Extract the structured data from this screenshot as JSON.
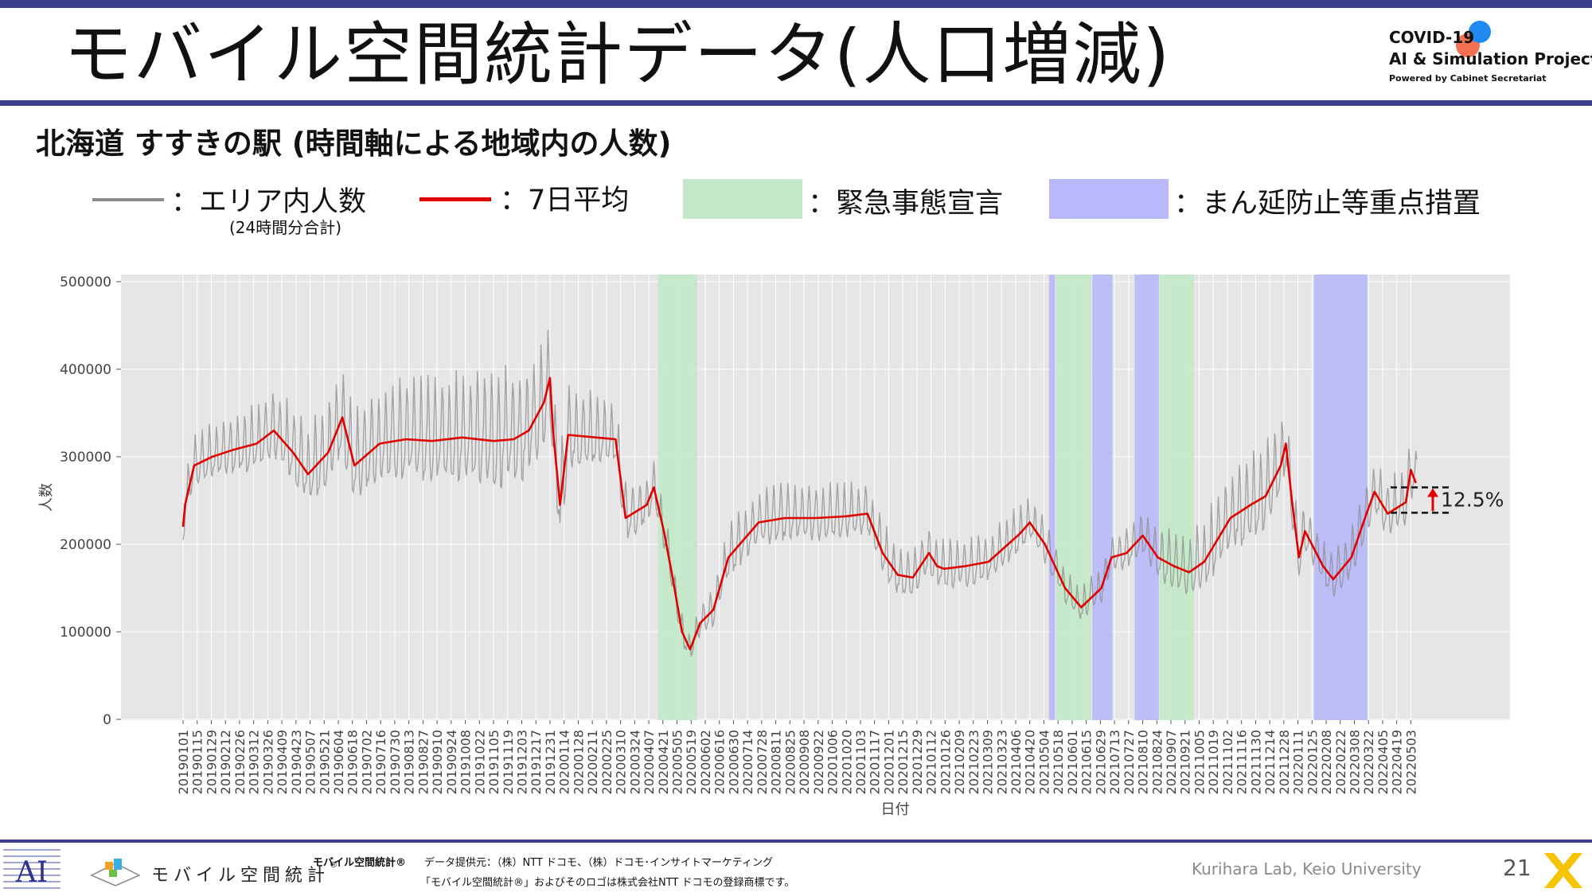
{
  "header": {
    "title": "モバイル空間統計データ(人口増減)",
    "logo_line1": "COVID-19",
    "logo_line2": "AI & Simulation Project",
    "logo_line3": "Powered by Cabinet Secretariat"
  },
  "subtitle": "北海道 すすきの駅 (時間軸による地域内の人数)",
  "legend": {
    "area_population": "：エリア内人数",
    "area_note": "(24時間分合計)",
    "seven_day_avg": "：7日平均",
    "emergency": "：緊急事態宣言",
    "priority_measures": "：まん延防止等重点措置",
    "colors": {
      "area_line": "#8c8c8c",
      "avg_line": "#e00000",
      "emergency": "#c2e8c8",
      "priority": "#b8b8fa"
    }
  },
  "chart_data": {
    "type": "line",
    "xlabel": "日付",
    "ylabel": "人数",
    "ylim": [
      0,
      500000
    ],
    "yticks": [
      0,
      100000,
      200000,
      300000,
      400000,
      500000
    ],
    "grid": true,
    "x_start": "2019-01-01",
    "x_end": "2022-05-09",
    "x_tick_labels": [
      "20190101",
      "20190115",
      "20190129",
      "20190212",
      "20190226",
      "20190312",
      "20190326",
      "20190409",
      "20190423",
      "20190507",
      "20190521",
      "20190604",
      "20190618",
      "20190702",
      "20190716",
      "20190730",
      "20190813",
      "20190827",
      "20190910",
      "20190924",
      "20191008",
      "20191022",
      "20191105",
      "20191119",
      "20191203",
      "20191217",
      "20191231",
      "20200114",
      "20200128",
      "20200211",
      "20200225",
      "20200310",
      "20200324",
      "20200407",
      "20200421",
      "20200505",
      "20200519",
      "20200602",
      "20200616",
      "20200630",
      "20200714",
      "20200728",
      "20200811",
      "20200825",
      "20200908",
      "20200922",
      "20201006",
      "20201020",
      "20201103",
      "20201117",
      "20201201",
      "20201215",
      "20201229",
      "20210112",
      "20210126",
      "20210209",
      "20210223",
      "20210309",
      "20210323",
      "20210406",
      "20210420",
      "20210504",
      "20210518",
      "20210601",
      "20210615",
      "20210629",
      "20210713",
      "20210727",
      "20210810",
      "20210824",
      "20210907",
      "20210921",
      "20211005",
      "20211019",
      "20211102",
      "20211116",
      "20211130",
      "20211214",
      "20211228",
      "20220111",
      "20220125",
      "20220208",
      "20220222",
      "20220308",
      "20220322",
      "20220405",
      "20220419",
      "20220503"
    ],
    "shaded_periods": [
      {
        "type": "emergency",
        "start": "2020-04-16",
        "end": "2020-05-25"
      },
      {
        "type": "priority",
        "start": "2021-05-09",
        "end": "2021-05-15"
      },
      {
        "type": "emergency",
        "start": "2021-05-16",
        "end": "2021-06-20"
      },
      {
        "type": "priority",
        "start": "2021-06-21",
        "end": "2021-07-11"
      },
      {
        "type": "priority",
        "start": "2021-08-02",
        "end": "2021-08-26"
      },
      {
        "type": "emergency",
        "start": "2021-08-27",
        "end": "2021-09-30"
      },
      {
        "type": "priority",
        "start": "2022-01-27",
        "end": "2022-03-21"
      }
    ],
    "series": [
      {
        "name": "エリア内人数",
        "note": "daily values oscillate ±amp around the 7-day average (weekly cycle)",
        "amp_points": [
          [
            "2019-01-01",
            30000
          ],
          [
            "2019-06-01",
            55000
          ],
          [
            "2019-12-01",
            75000
          ],
          [
            "2019-12-31",
            60000
          ],
          [
            "2020-03-01",
            40000
          ],
          [
            "2020-04-25",
            25000
          ],
          [
            "2020-05-20",
            15000
          ],
          [
            "2020-07-01",
            35000
          ],
          [
            "2020-11-01",
            35000
          ],
          [
            "2021-01-01",
            30000
          ],
          [
            "2021-05-01",
            30000
          ],
          [
            "2021-06-01",
            20000
          ],
          [
            "2021-08-01",
            25000
          ],
          [
            "2021-12-01",
            60000
          ],
          [
            "2021-12-28",
            45000
          ],
          [
            "2022-02-01",
            25000
          ],
          [
            "2022-05-08",
            40000
          ]
        ]
      },
      {
        "name": "7日平均",
        "points": [
          [
            "2019-01-01",
            220000
          ],
          [
            "2019-01-03",
            245000
          ],
          [
            "2019-01-12",
            290000
          ],
          [
            "2019-01-30",
            300000
          ],
          [
            "2019-02-20",
            308000
          ],
          [
            "2019-03-15",
            315000
          ],
          [
            "2019-04-01",
            330000
          ],
          [
            "2019-04-20",
            305000
          ],
          [
            "2019-05-05",
            280000
          ],
          [
            "2019-05-25",
            305000
          ],
          [
            "2019-06-08",
            345000
          ],
          [
            "2019-06-20",
            290000
          ],
          [
            "2019-07-15",
            315000
          ],
          [
            "2019-08-10",
            320000
          ],
          [
            "2019-09-05",
            318000
          ],
          [
            "2019-10-05",
            322000
          ],
          [
            "2019-11-05",
            318000
          ],
          [
            "2019-11-25",
            320000
          ],
          [
            "2019-12-10",
            330000
          ],
          [
            "2019-12-25",
            362000
          ],
          [
            "2019-12-31",
            390000
          ],
          [
            "2020-01-03",
            330000
          ],
          [
            "2020-01-10",
            245000
          ],
          [
            "2020-01-18",
            325000
          ],
          [
            "2020-02-15",
            322000
          ],
          [
            "2020-03-05",
            320000
          ],
          [
            "2020-03-15",
            230000
          ],
          [
            "2020-04-05",
            245000
          ],
          [
            "2020-04-12",
            265000
          ],
          [
            "2020-04-22",
            215000
          ],
          [
            "2020-05-01",
            160000
          ],
          [
            "2020-05-10",
            100000
          ],
          [
            "2020-05-18",
            80000
          ],
          [
            "2020-05-28",
            110000
          ],
          [
            "2020-06-10",
            125000
          ],
          [
            "2020-06-25",
            185000
          ],
          [
            "2020-07-25",
            225000
          ],
          [
            "2020-08-20",
            230000
          ],
          [
            "2020-09-20",
            230000
          ],
          [
            "2020-10-20",
            232000
          ],
          [
            "2020-11-10",
            235000
          ],
          [
            "2020-11-25",
            190000
          ],
          [
            "2020-12-10",
            165000
          ],
          [
            "2020-12-25",
            162000
          ],
          [
            "2021-01-10",
            190000
          ],
          [
            "2021-01-18",
            175000
          ],
          [
            "2021-01-25",
            172000
          ],
          [
            "2021-02-15",
            175000
          ],
          [
            "2021-03-10",
            180000
          ],
          [
            "2021-04-10",
            212000
          ],
          [
            "2021-04-20",
            225000
          ],
          [
            "2021-05-05",
            200000
          ],
          [
            "2021-05-25",
            150000
          ],
          [
            "2021-06-10",
            128000
          ],
          [
            "2021-06-30",
            150000
          ],
          [
            "2021-07-10",
            185000
          ],
          [
            "2021-07-25",
            190000
          ],
          [
            "2021-08-10",
            210000
          ],
          [
            "2021-08-25",
            185000
          ],
          [
            "2021-09-10",
            175000
          ],
          [
            "2021-09-25",
            168000
          ],
          [
            "2021-10-10",
            180000
          ],
          [
            "2021-11-05",
            230000
          ],
          [
            "2021-11-25",
            245000
          ],
          [
            "2021-12-10",
            255000
          ],
          [
            "2021-12-25",
            290000
          ],
          [
            "2021-12-30",
            315000
          ],
          [
            "2022-01-05",
            250000
          ],
          [
            "2022-01-12",
            185000
          ],
          [
            "2022-01-18",
            215000
          ],
          [
            "2022-02-05",
            175000
          ],
          [
            "2022-02-15",
            160000
          ],
          [
            "2022-03-05",
            185000
          ],
          [
            "2022-03-20",
            235000
          ],
          [
            "2022-03-28",
            260000
          ],
          [
            "2022-04-10",
            235000
          ],
          [
            "2022-04-28",
            248000
          ],
          [
            "2022-05-03",
            285000
          ],
          [
            "2022-05-08",
            270000
          ]
        ]
      }
    ],
    "annotation": {
      "text": "12.5%",
      "from": 236000,
      "to": 265000
    }
  },
  "footer": {
    "brand": "モバイル空間統計",
    "brand_mark": "®",
    "stat_label": "モバイル空間統計®",
    "provider": "データ提供元：（株）NTT ドコモ、（株）ドコモ･インサイトマーケティング",
    "trademark": "「モバイル空間統計®」およびそのロゴは株式会社NTT ドコモの登録商標です。",
    "lab": "Kurihara Lab, Keio University",
    "page": "21"
  }
}
